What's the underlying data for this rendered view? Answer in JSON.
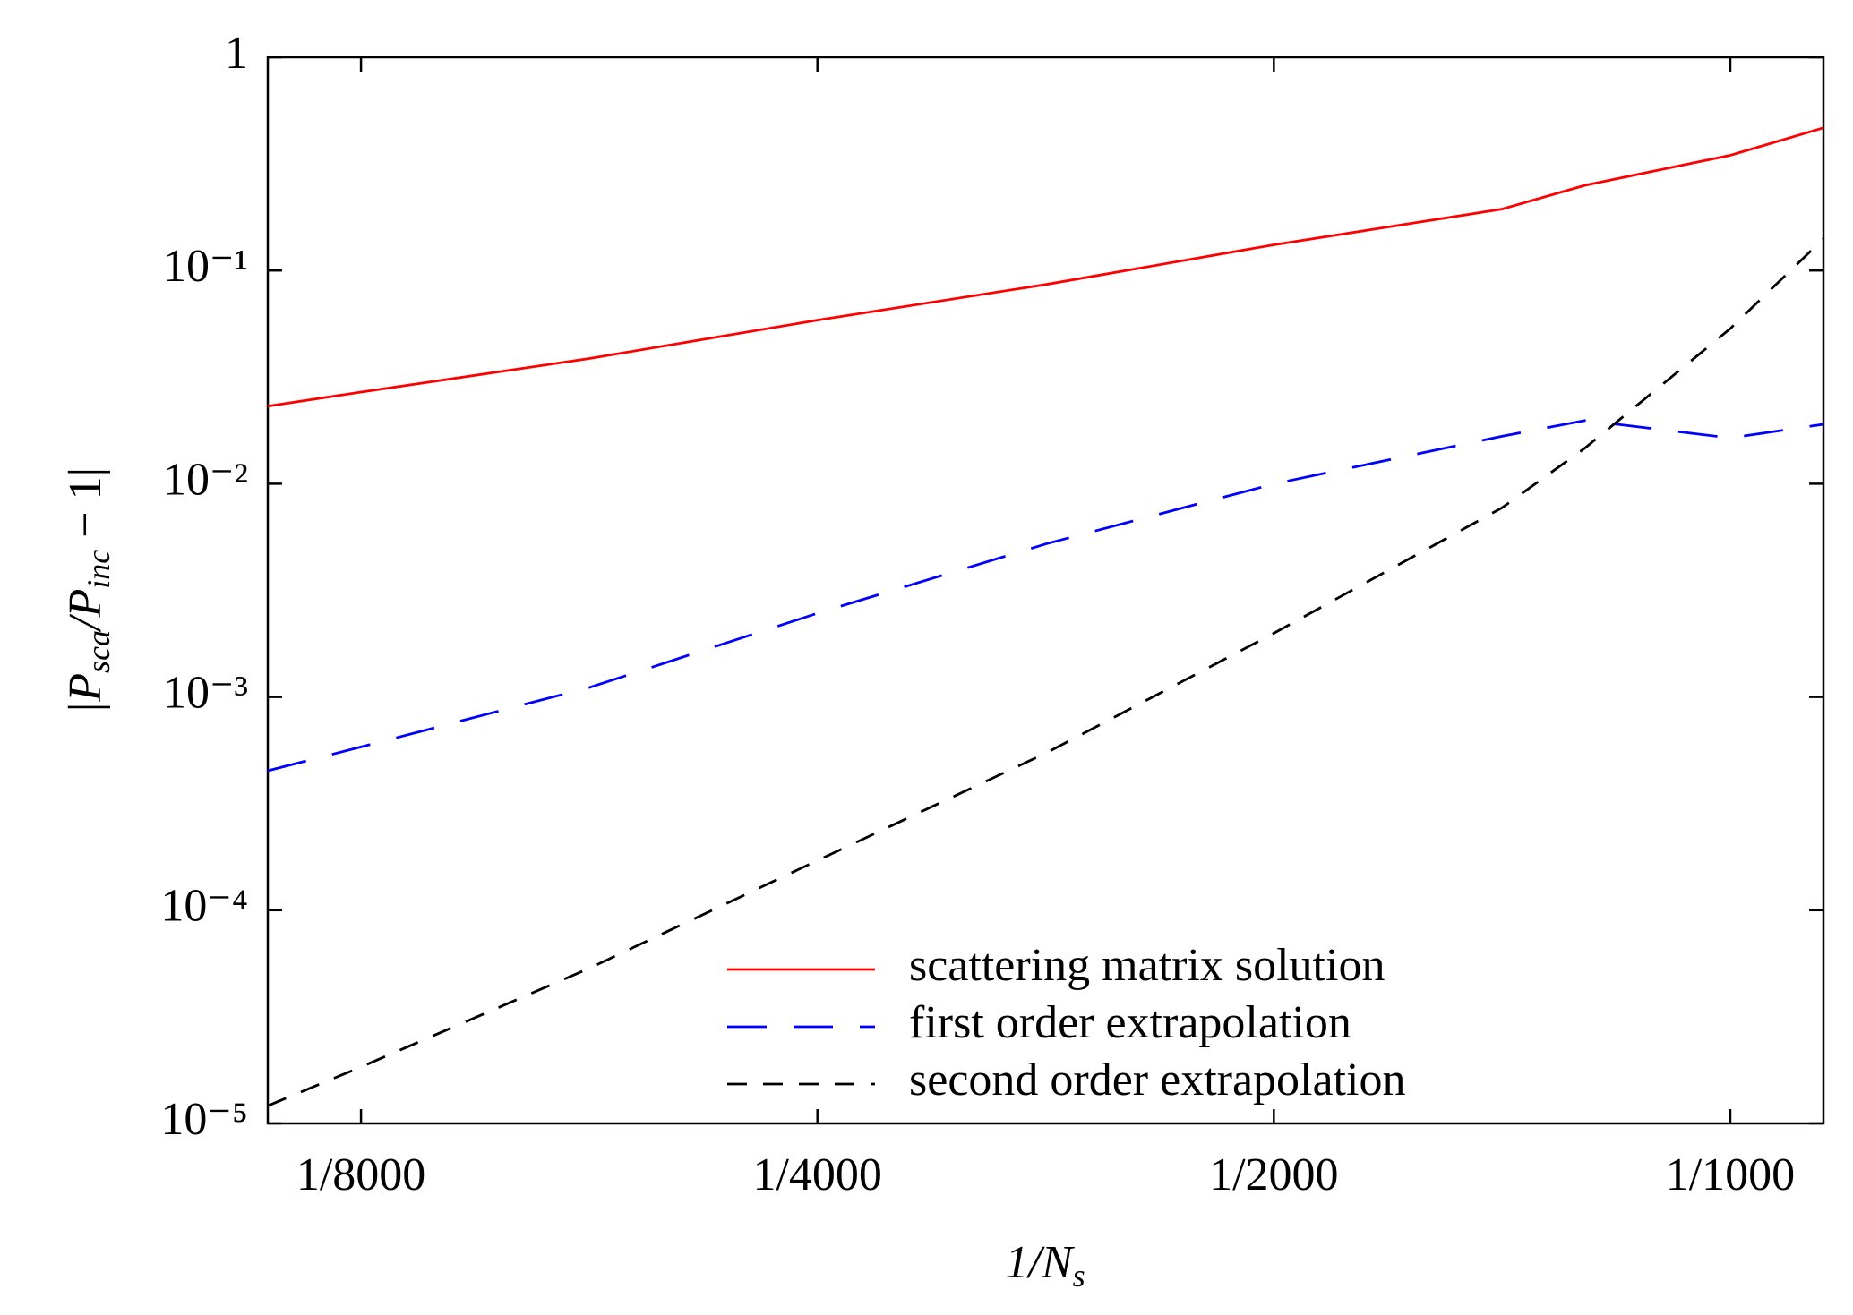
{
  "chart_data": {
    "type": "line",
    "xlabel": [
      "1/N",
      "s"
    ],
    "ylabel": [
      "|P",
      "sca",
      "/P",
      "inc",
      " − 1|"
    ],
    "xscale": "log",
    "yscale": "log",
    "x": [
      0.0001085,
      0.000125,
      0.000177,
      0.00025,
      0.000354,
      0.0005,
      0.000707,
      0.000802,
      0.001,
      0.001152
    ],
    "series": [
      {
        "name": "scattering matrix solution",
        "color": "#ff0000",
        "dash": "solid",
        "values": [
          0.0231,
          0.0269,
          0.0387,
          0.0585,
          0.0861,
          0.132,
          0.194,
          0.251,
          0.347,
          0.467
        ]
      },
      {
        "name": "first order extrapolation",
        "color": "#0000ff",
        "dash": "long",
        "values": [
          0.000451,
          0.000583,
          0.00111,
          0.00247,
          0.00523,
          0.00998,
          0.0167,
          0.0198,
          0.0164,
          0.019
        ]
      },
      {
        "name": "second order extrapolation",
        "color": "#000000",
        "dash": "short",
        "values": [
          1.21e-05,
          1.84e-05,
          5.36e-05,
          0.000171,
          0.000547,
          0.00199,
          0.00771,
          0.0147,
          0.0534,
          0.141
        ]
      }
    ],
    "xlim": [
      0.0001085,
      0.001152
    ],
    "xticks": [
      {
        "value": 0.000125,
        "label": "1/8000"
      },
      {
        "value": 0.00025,
        "label": "1/4000"
      },
      {
        "value": 0.0005,
        "label": "1/2000"
      },
      {
        "value": 0.001,
        "label": "1/1000"
      }
    ],
    "ylim": [
      1e-05,
      1
    ],
    "yticks": [
      {
        "value": 1e-05,
        "label": "10⁻⁵"
      },
      {
        "value": 0.0001,
        "label": "10⁻⁴"
      },
      {
        "value": 0.001,
        "label": "10⁻³"
      },
      {
        "value": 0.01,
        "label": "10⁻²"
      },
      {
        "value": 0.1,
        "label": "10⁻¹"
      },
      1
    ],
    "legend": "lower right",
    "grid": false
  }
}
